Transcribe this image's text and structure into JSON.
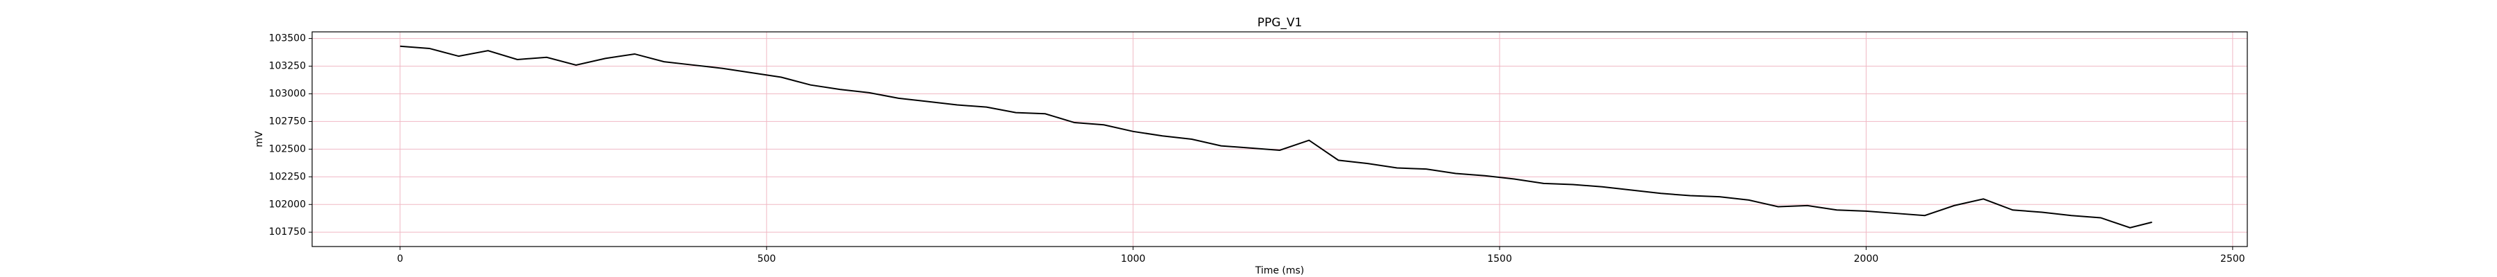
{
  "chart_data": {
    "type": "line",
    "title": "PPG_V1",
    "x_label": "Time (ms)",
    "y_label": "mV",
    "x": [
      0,
      40,
      80,
      120,
      160,
      200,
      240,
      280,
      320,
      360,
      400,
      440,
      480,
      520,
      560,
      600,
      640,
      680,
      720,
      760,
      800,
      840,
      880,
      920,
      960,
      1000,
      1040,
      1080,
      1120,
      1160,
      1200,
      1240,
      1280,
      1320,
      1360,
      1400,
      1440,
      1480,
      1520,
      1560,
      1600,
      1640,
      1680,
      1720,
      1760,
      1800,
      1840,
      1880,
      1920,
      1960,
      2000,
      2040,
      2080,
      2120,
      2160,
      2200,
      2240,
      2280,
      2320,
      2360,
      2390
    ],
    "series": [
      {
        "name": "PPG_V1",
        "color": "#000000",
        "values": [
          103430,
          103410,
          103340,
          103390,
          103310,
          103330,
          103260,
          103320,
          103360,
          103290,
          103260,
          103230,
          103190,
          103150,
          103080,
          103040,
          103010,
          102960,
          102930,
          102900,
          102880,
          102830,
          102820,
          102740,
          102720,
          102660,
          102620,
          102590,
          102530,
          102510,
          102490,
          102580,
          102400,
          102370,
          102330,
          102320,
          102280,
          102260,
          102230,
          102190,
          102180,
          102160,
          102130,
          102100,
          102080,
          102070,
          102040,
          101980,
          101990,
          101950,
          101940,
          101920,
          101900,
          101990,
          102050,
          101950,
          101930,
          101900,
          101880,
          101790,
          101840
        ]
      }
    ],
    "xlim": [
      -120,
      2520
    ],
    "ylim": [
      101620,
      103560
    ],
    "xticks": [
      0,
      500,
      1000,
      1500,
      2000,
      2500
    ],
    "yticks": [
      101750,
      102000,
      102250,
      102500,
      102750,
      103000,
      103250,
      103500
    ],
    "grid": true,
    "grid_color": "#f0b8c4"
  }
}
